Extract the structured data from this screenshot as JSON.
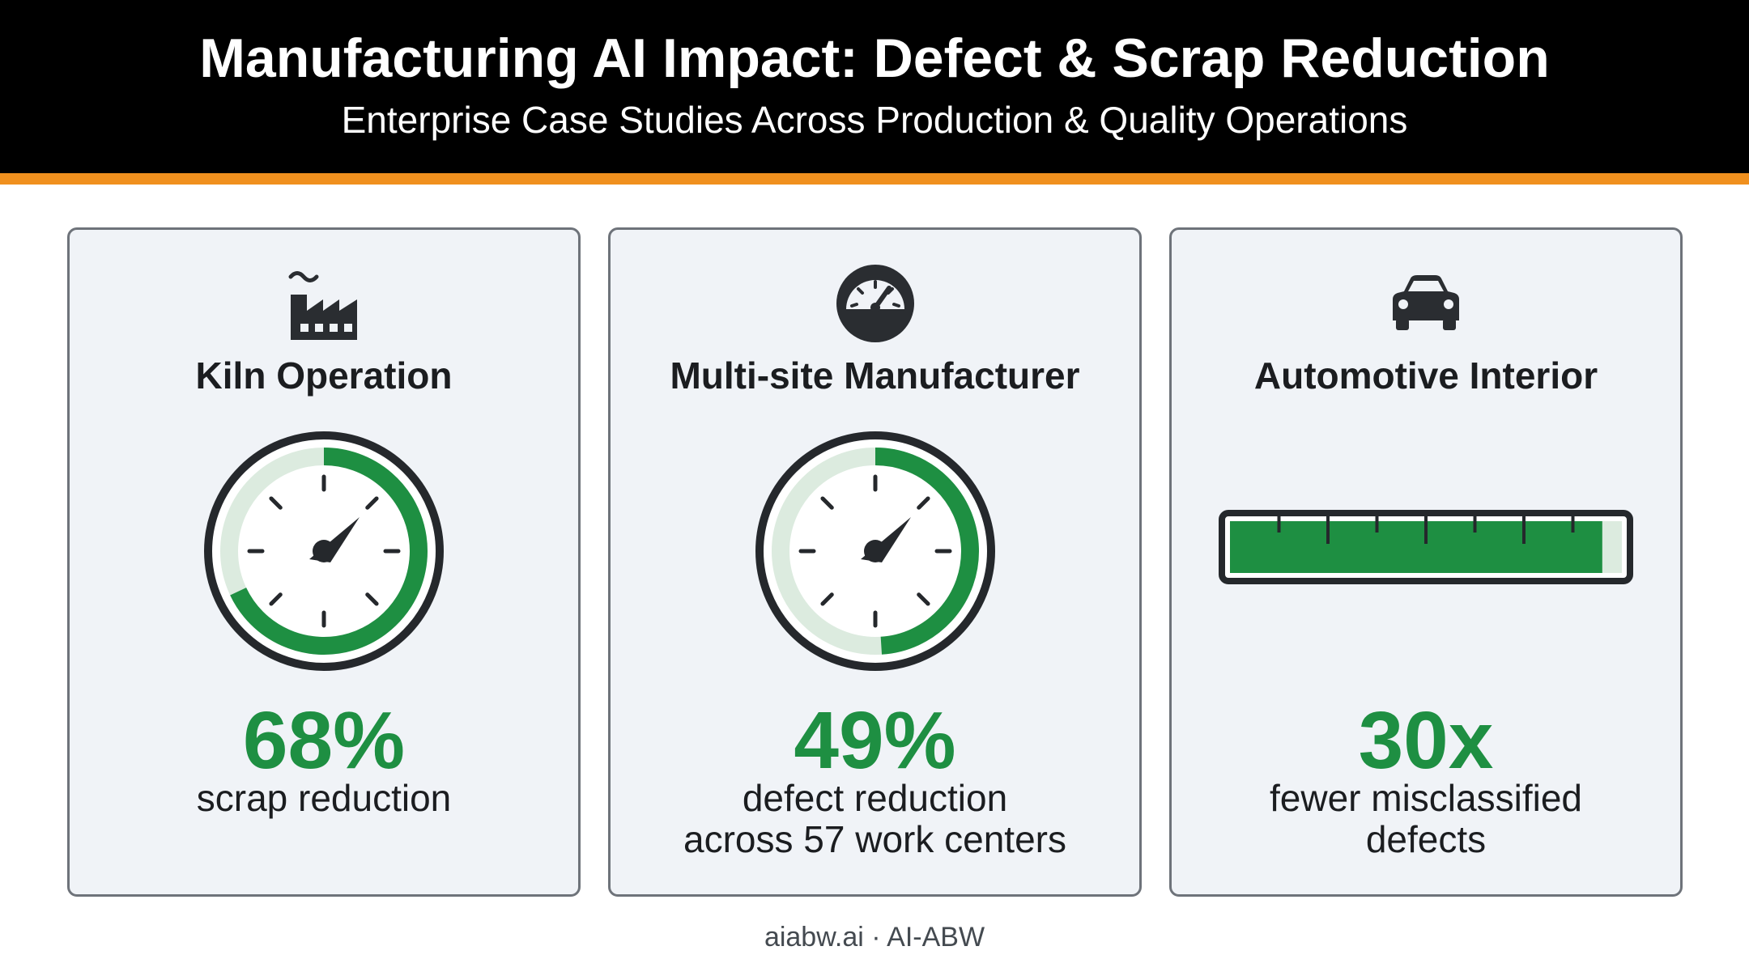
{
  "header": {
    "title": "Manufacturing AI Impact: Defect & Scrap Reduction",
    "subtitle": "Enterprise Case Studies Across Production & Quality Operations"
  },
  "colors": {
    "header_bg": "#000000",
    "accent_bar": "#f0901e",
    "metric_green": "#1e8f42",
    "card_bg": "#f0f3f7"
  },
  "cards": [
    {
      "icon": "factory-icon",
      "title": "Kiln Operation",
      "value": "68%",
      "description": "scrap reduction",
      "visual": "gauge",
      "level": 0.68
    },
    {
      "icon": "speedometer-icon",
      "title": "Multi-site Manufacturer",
      "value": "49%",
      "description": "defect reduction\nacross 57 work centers",
      "visual": "gauge",
      "level": 0.49
    },
    {
      "icon": "car-icon",
      "title": "Automotive Interior",
      "value": "30x",
      "description": "fewer misclassified\ndefects",
      "visual": "meter",
      "level": 0.95
    }
  ],
  "footer": "aiabw.ai · AI-ABW"
}
